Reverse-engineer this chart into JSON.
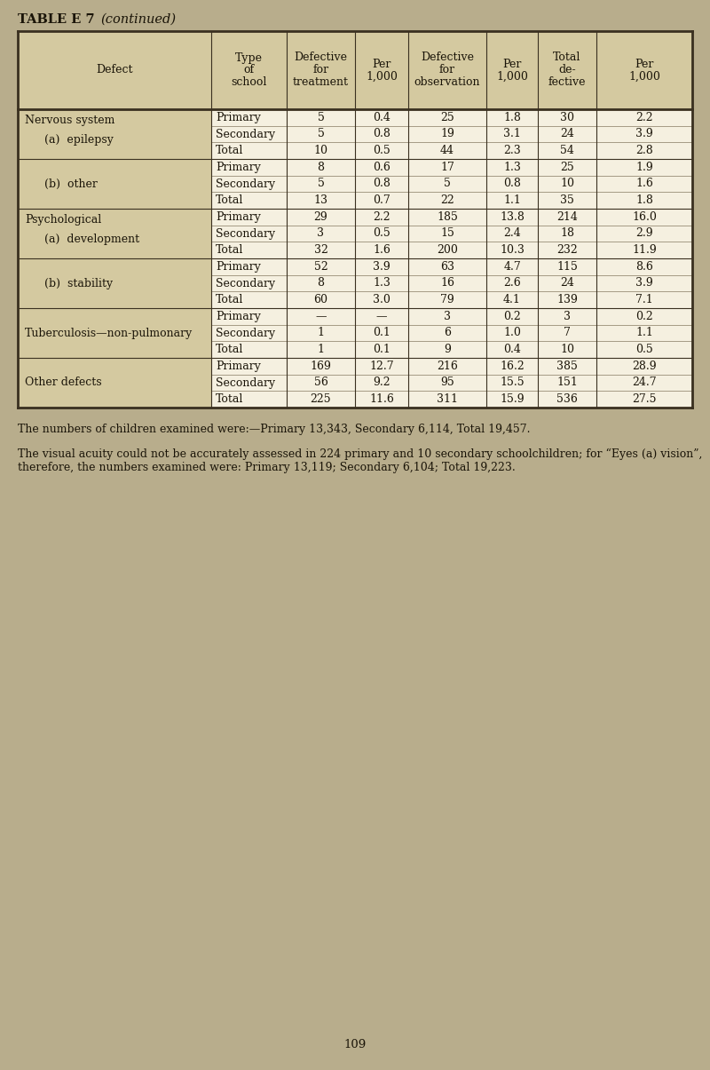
{
  "bg_color": "#b8ad8c",
  "page_bg": "#b8ad8c",
  "cell_bg": "#f5f0e0",
  "header_bg": "#d4c9a0",
  "defect_col_bg": "#d4c9a0",
  "text_color": "#1a1408",
  "page_number": "109",
  "footnote1": "The numbers of children examined were:—Primary 13,343, Secondary 6,114, Total 19,457.",
  "footnote2": "The visual acuity could not be accurately assessed in 224 primary and 10 secondary schoolchildren; for “Eyes (a) vision”, therefore, the numbers examined were: Primary 13,119; Secondary 6,104; Total 19,223.",
  "title_bold": "TABLE E 7",
  "title_italic": "(continued)",
  "rows": [
    {
      "defect_label": [
        "Nervous system",
        "(a)  epilepsy"
      ],
      "defect_indent": [
        false,
        true
      ],
      "school": [
        "Primary",
        "Secondary",
        "Total"
      ],
      "treat": [
        "5",
        "5",
        "10"
      ],
      "treat_per": [
        "0.4",
        "0.8",
        "0.5"
      ],
      "obs": [
        "25",
        "19",
        "44"
      ],
      "obs_per": [
        "1.8",
        "3.1",
        "2.3"
      ],
      "total": [
        "30",
        "24",
        "54"
      ],
      "total_per": [
        "2.2",
        "3.9",
        "2.8"
      ]
    },
    {
      "defect_label": [
        "(b)  other"
      ],
      "defect_indent": [
        true
      ],
      "school": [
        "Primary",
        "Secondary",
        "Total"
      ],
      "treat": [
        "8",
        "5",
        "13"
      ],
      "treat_per": [
        "0.6",
        "0.8",
        "0.7"
      ],
      "obs": [
        "17",
        "5",
        "22"
      ],
      "obs_per": [
        "1.3",
        "0.8",
        "1.1"
      ],
      "total": [
        "25",
        "10",
        "35"
      ],
      "total_per": [
        "1.9",
        "1.6",
        "1.8"
      ]
    },
    {
      "defect_label": [
        "Psychological",
        "(a)  development"
      ],
      "defect_indent": [
        false,
        true
      ],
      "school": [
        "Primary",
        "Secondary",
        "Total"
      ],
      "treat": [
        "29",
        "3",
        "32"
      ],
      "treat_per": [
        "2.2",
        "0.5",
        "1.6"
      ],
      "obs": [
        "185",
        "15",
        "200"
      ],
      "obs_per": [
        "13.8",
        "2.4",
        "10.3"
      ],
      "total": [
        "214",
        "18",
        "232"
      ],
      "total_per": [
        "16.0",
        "2.9",
        "11.9"
      ]
    },
    {
      "defect_label": [
        "(b)  stability"
      ],
      "defect_indent": [
        true
      ],
      "school": [
        "Primary",
        "Secondary",
        "Total"
      ],
      "treat": [
        "52",
        "8",
        "60"
      ],
      "treat_per": [
        "3.9",
        "1.3",
        "3.0"
      ],
      "obs": [
        "63",
        "16",
        "79"
      ],
      "obs_per": [
        "4.7",
        "2.6",
        "4.1"
      ],
      "total": [
        "115",
        "24",
        "139"
      ],
      "total_per": [
        "8.6",
        "3.9",
        "7.1"
      ]
    },
    {
      "defect_label": [
        "Tuberculosis—non-pulmonary"
      ],
      "defect_indent": [
        false
      ],
      "school": [
        "Primary",
        "Secondary",
        "Total"
      ],
      "treat": [
        "—",
        "1",
        "1"
      ],
      "treat_per": [
        "—",
        "0.1",
        "0.1"
      ],
      "obs": [
        "3",
        "6",
        "9"
      ],
      "obs_per": [
        "0.2",
        "1.0",
        "0.4"
      ],
      "total": [
        "3",
        "7",
        "10"
      ],
      "total_per": [
        "0.2",
        "1.1",
        "0.5"
      ]
    },
    {
      "defect_label": [
        "Other defects"
      ],
      "defect_indent": [
        false
      ],
      "school": [
        "Primary",
        "Secondary",
        "Total"
      ],
      "treat": [
        "169",
        "56",
        "225"
      ],
      "treat_per": [
        "12.7",
        "9.2",
        "11.6"
      ],
      "obs": [
        "216",
        "95",
        "311"
      ],
      "obs_per": [
        "16.2",
        "15.5",
        "15.9"
      ],
      "total": [
        "385",
        "151",
        "536"
      ],
      "total_per": [
        "28.9",
        "24.7",
        "27.5"
      ]
    }
  ]
}
